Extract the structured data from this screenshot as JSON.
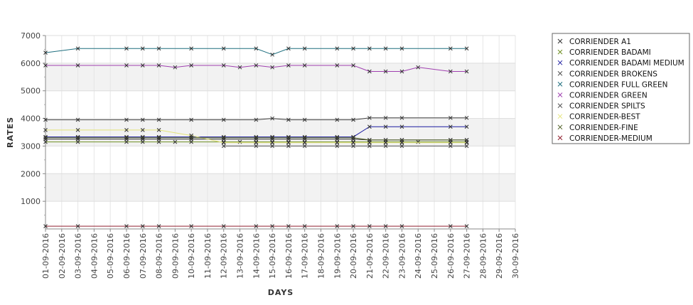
{
  "chart_data": {
    "type": "line",
    "xlabel": "DAYS",
    "ylabel": "RATES",
    "ylim": [
      0,
      7000
    ],
    "yticks": [
      1000,
      2000,
      3000,
      4000,
      5000,
      6000,
      7000
    ],
    "grid": true,
    "legend_position": "right",
    "x": [
      "01-09-2016",
      "02-09-2016",
      "03-09-2016",
      "04-09-2016",
      "05-09-2016",
      "06-09-2016",
      "07-09-2016",
      "08-09-2016",
      "09-09-2016",
      "10-09-2016",
      "11-09-2016",
      "12-09-2016",
      "13-09-2016",
      "14-09-2016",
      "15-09-2016",
      "16-09-2016",
      "17-09-2016",
      "18-09-2016",
      "19-09-2016",
      "20-09-2016",
      "21-09-2016",
      "22-09-2016",
      "23-09-2016",
      "24-09-2016",
      "25-09-2016",
      "26-09-2016",
      "27-09-2016",
      "28-09-2016",
      "29-09-2016",
      "30-09-2016"
    ],
    "series": [
      {
        "name": "CORRIENDER A1",
        "color": "#333333",
        "points": [
          [
            "01-09-2016",
            3250
          ],
          [
            "03-09-2016",
            3250
          ],
          [
            "06-09-2016",
            3250
          ],
          [
            "07-09-2016",
            3250
          ],
          [
            "08-09-2016",
            3250
          ],
          [
            "10-09-2016",
            3250
          ],
          [
            "12-09-2016",
            3250
          ],
          [
            "14-09-2016",
            3250
          ],
          [
            "15-09-2016",
            3250
          ],
          [
            "16-09-2016",
            3250
          ],
          [
            "17-09-2016",
            3250
          ],
          [
            "19-09-2016",
            3250
          ],
          [
            "20-09-2016",
            3250
          ],
          [
            "21-09-2016",
            3220
          ],
          [
            "22-09-2016",
            3220
          ],
          [
            "23-09-2016",
            3220
          ],
          [
            "26-09-2016",
            3220
          ],
          [
            "27-09-2016",
            3220
          ]
        ]
      },
      {
        "name": "CORRIENDER BADAMI",
        "color": "#6e8e20",
        "points": [
          [
            "01-09-2016",
            3150
          ],
          [
            "03-09-2016",
            3150
          ],
          [
            "06-09-2016",
            3150
          ],
          [
            "07-09-2016",
            3150
          ],
          [
            "08-09-2016",
            3150
          ],
          [
            "09-09-2016",
            3150
          ],
          [
            "10-09-2016",
            3150
          ],
          [
            "12-09-2016",
            3150
          ],
          [
            "13-09-2016",
            3150
          ],
          [
            "14-09-2016",
            3150
          ],
          [
            "15-09-2016",
            3150
          ],
          [
            "16-09-2016",
            3150
          ],
          [
            "17-09-2016",
            3150
          ],
          [
            "19-09-2016",
            3150
          ],
          [
            "20-09-2016",
            3150
          ],
          [
            "21-09-2016",
            3150
          ],
          [
            "22-09-2016",
            3150
          ],
          [
            "23-09-2016",
            3150
          ],
          [
            "24-09-2016",
            3150
          ],
          [
            "26-09-2016",
            3150
          ],
          [
            "27-09-2016",
            3150
          ]
        ]
      },
      {
        "name": "CORRIENDER BADAMI MEDIUM",
        "color": "#1a1aa0",
        "points": [
          [
            "01-09-2016",
            3330
          ],
          [
            "03-09-2016",
            3330
          ],
          [
            "06-09-2016",
            3330
          ],
          [
            "07-09-2016",
            3330
          ],
          [
            "08-09-2016",
            3330
          ],
          [
            "10-09-2016",
            3330
          ],
          [
            "12-09-2016",
            3330
          ],
          [
            "14-09-2016",
            3330
          ],
          [
            "15-09-2016",
            3330
          ],
          [
            "16-09-2016",
            3330
          ],
          [
            "17-09-2016",
            3330
          ],
          [
            "19-09-2016",
            3330
          ],
          [
            "20-09-2016",
            3330
          ],
          [
            "21-09-2016",
            3700
          ],
          [
            "22-09-2016",
            3700
          ],
          [
            "23-09-2016",
            3700
          ],
          [
            "26-09-2016",
            3700
          ],
          [
            "27-09-2016",
            3700
          ]
        ]
      },
      {
        "name": "CORRIENDER BROKENS",
        "color": "#444444",
        "points": [
          [
            "01-09-2016",
            3950
          ],
          [
            "03-09-2016",
            3950
          ],
          [
            "06-09-2016",
            3950
          ],
          [
            "07-09-2016",
            3950
          ],
          [
            "08-09-2016",
            3950
          ],
          [
            "10-09-2016",
            3950
          ],
          [
            "12-09-2016",
            3950
          ],
          [
            "14-09-2016",
            3950
          ],
          [
            "15-09-2016",
            4000
          ],
          [
            "16-09-2016",
            3950
          ],
          [
            "17-09-2016",
            3950
          ],
          [
            "19-09-2016",
            3950
          ],
          [
            "20-09-2016",
            3950
          ],
          [
            "21-09-2016",
            4020
          ],
          [
            "22-09-2016",
            4020
          ],
          [
            "23-09-2016",
            4020
          ],
          [
            "26-09-2016",
            4020
          ],
          [
            "27-09-2016",
            4020
          ]
        ]
      },
      {
        "name": "CORRIENDER FULL GREEN",
        "color": "#1f6f7f",
        "points": [
          [
            "01-09-2016",
            6380
          ],
          [
            "03-09-2016",
            6530
          ],
          [
            "06-09-2016",
            6530
          ],
          [
            "07-09-2016",
            6530
          ],
          [
            "08-09-2016",
            6530
          ],
          [
            "10-09-2016",
            6530
          ],
          [
            "12-09-2016",
            6530
          ],
          [
            "14-09-2016",
            6530
          ],
          [
            "15-09-2016",
            6310
          ],
          [
            "16-09-2016",
            6530
          ],
          [
            "17-09-2016",
            6530
          ],
          [
            "19-09-2016",
            6530
          ],
          [
            "20-09-2016",
            6530
          ],
          [
            "21-09-2016",
            6530
          ],
          [
            "22-09-2016",
            6530
          ],
          [
            "23-09-2016",
            6530
          ],
          [
            "26-09-2016",
            6530
          ],
          [
            "27-09-2016",
            6530
          ]
        ]
      },
      {
        "name": "CORRIENDER GREEN",
        "color": "#a040b0",
        "points": [
          [
            "01-09-2016",
            5920
          ],
          [
            "03-09-2016",
            5920
          ],
          [
            "06-09-2016",
            5920
          ],
          [
            "07-09-2016",
            5920
          ],
          [
            "08-09-2016",
            5920
          ],
          [
            "09-09-2016",
            5850
          ],
          [
            "10-09-2016",
            5920
          ],
          [
            "12-09-2016",
            5920
          ],
          [
            "13-09-2016",
            5850
          ],
          [
            "14-09-2016",
            5920
          ],
          [
            "15-09-2016",
            5850
          ],
          [
            "16-09-2016",
            5920
          ],
          [
            "17-09-2016",
            5920
          ],
          [
            "19-09-2016",
            5920
          ],
          [
            "20-09-2016",
            5920
          ],
          [
            "21-09-2016",
            5700
          ],
          [
            "22-09-2016",
            5700
          ],
          [
            "23-09-2016",
            5700
          ],
          [
            "24-09-2016",
            5850
          ],
          [
            "26-09-2016",
            5700
          ],
          [
            "27-09-2016",
            5700
          ]
        ]
      },
      {
        "name": "CORRIENDER SPILTS",
        "color": "#555555",
        "points": [
          [
            "12-09-2016",
            3000
          ],
          [
            "14-09-2016",
            3000
          ],
          [
            "15-09-2016",
            3000
          ],
          [
            "16-09-2016",
            3000
          ],
          [
            "17-09-2016",
            3000
          ],
          [
            "19-09-2016",
            3000
          ],
          [
            "20-09-2016",
            3000
          ],
          [
            "21-09-2016",
            3000
          ],
          [
            "22-09-2016",
            3000
          ],
          [
            "23-09-2016",
            3000
          ],
          [
            "26-09-2016",
            3000
          ],
          [
            "27-09-2016",
            3000
          ]
        ]
      },
      {
        "name": "CORRIENDER-BEST",
        "color": "#e4e47a",
        "points": [
          [
            "01-09-2016",
            3580
          ],
          [
            "03-09-2016",
            3580
          ],
          [
            "06-09-2016",
            3580
          ],
          [
            "07-09-2016",
            3580
          ],
          [
            "08-09-2016",
            3580
          ],
          [
            "10-09-2016",
            3380
          ],
          [
            "12-09-2016",
            3120
          ],
          [
            "14-09-2016",
            3120
          ],
          [
            "15-09-2016",
            3120
          ],
          [
            "16-09-2016",
            3120
          ],
          [
            "17-09-2016",
            3120
          ],
          [
            "19-09-2016",
            3120
          ],
          [
            "20-09-2016",
            3120
          ],
          [
            "21-09-2016",
            3120
          ],
          [
            "22-09-2016",
            3120
          ],
          [
            "23-09-2016",
            3120
          ],
          [
            "26-09-2016",
            3120
          ],
          [
            "27-09-2016",
            3120
          ]
        ]
      },
      {
        "name": "CORRIENDER-FINE",
        "color": "#4a5a20",
        "points": [
          [
            "01-09-2016",
            3300
          ],
          [
            "03-09-2016",
            3300
          ],
          [
            "06-09-2016",
            3300
          ],
          [
            "07-09-2016",
            3300
          ],
          [
            "08-09-2016",
            3300
          ],
          [
            "10-09-2016",
            3300
          ],
          [
            "12-09-2016",
            3300
          ],
          [
            "14-09-2016",
            3300
          ],
          [
            "15-09-2016",
            3300
          ],
          [
            "16-09-2016",
            3300
          ],
          [
            "17-09-2016",
            3300
          ],
          [
            "19-09-2016",
            3300
          ],
          [
            "20-09-2016",
            3300
          ],
          [
            "21-09-2016",
            3220
          ],
          [
            "22-09-2016",
            3220
          ],
          [
            "23-09-2016",
            3220
          ],
          [
            "26-09-2016",
            3220
          ],
          [
            "27-09-2016",
            3220
          ]
        ]
      },
      {
        "name": "CORRIENDER-MEDIUM",
        "color": "#902030",
        "points": [
          [
            "01-09-2016",
            100
          ],
          [
            "03-09-2016",
            100
          ],
          [
            "06-09-2016",
            100
          ],
          [
            "07-09-2016",
            100
          ],
          [
            "08-09-2016",
            100
          ],
          [
            "10-09-2016",
            100
          ],
          [
            "12-09-2016",
            100
          ],
          [
            "14-09-2016",
            100
          ],
          [
            "15-09-2016",
            100
          ],
          [
            "16-09-2016",
            100
          ],
          [
            "17-09-2016",
            100
          ],
          [
            "19-09-2016",
            100
          ],
          [
            "20-09-2016",
            100
          ],
          [
            "21-09-2016",
            100
          ],
          [
            "22-09-2016",
            100
          ],
          [
            "23-09-2016",
            100
          ],
          [
            "26-09-2016",
            100
          ],
          [
            "27-09-2016",
            100
          ]
        ]
      }
    ]
  }
}
